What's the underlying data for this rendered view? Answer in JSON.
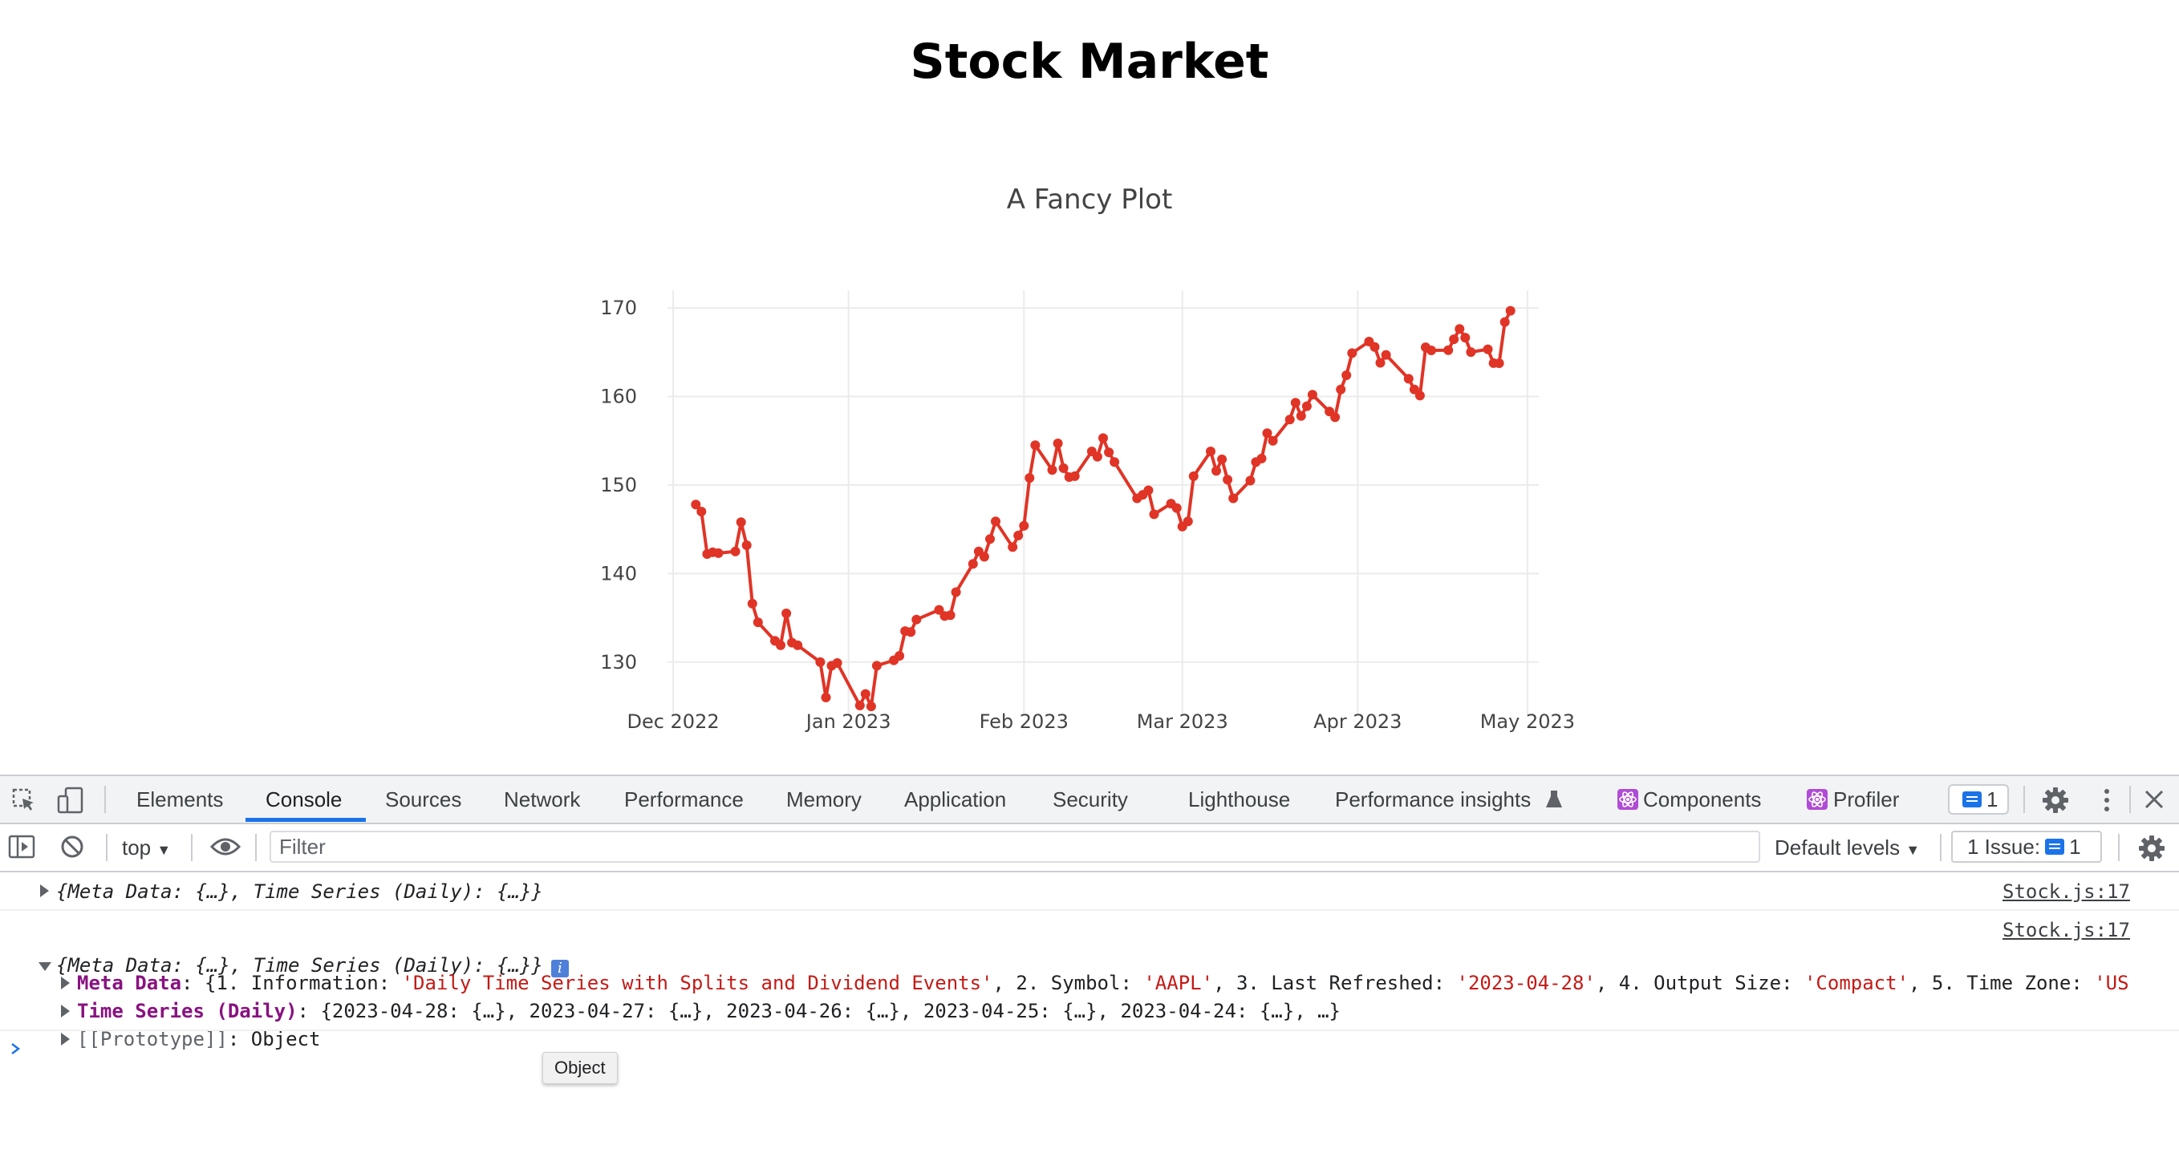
{
  "page": {
    "title": "Stock Market"
  },
  "chart_data": {
    "type": "line",
    "title": "A Fancy Plot",
    "xlabel": "",
    "ylabel": "",
    "x_ticks": [
      "Dec 2022",
      "Jan 2023",
      "Feb 2023",
      "Mar 2023",
      "Apr 2023",
      "May 2023"
    ],
    "y_ticks": [
      130,
      140,
      150,
      160,
      170
    ],
    "ylim": [
      124,
      172
    ],
    "xlim": [
      "2022-11-30",
      "2023-05-03"
    ],
    "grid": true,
    "line_color": "#e03426",
    "series": [
      {
        "x": [
          "2022-12-05",
          "2022-12-06",
          "2022-12-07",
          "2022-12-08",
          "2022-12-09",
          "2022-12-12",
          "2022-12-13",
          "2022-12-14",
          "2022-12-15",
          "2022-12-16",
          "2022-12-19",
          "2022-12-20",
          "2022-12-21",
          "2022-12-22",
          "2022-12-23",
          "2022-12-27",
          "2022-12-28",
          "2022-12-29",
          "2022-12-30",
          "2023-01-03",
          "2023-01-04",
          "2023-01-05",
          "2023-01-06",
          "2023-01-09",
          "2023-01-10",
          "2023-01-11",
          "2023-01-12",
          "2023-01-13",
          "2023-01-17",
          "2023-01-18",
          "2023-01-19",
          "2023-01-20",
          "2023-01-23",
          "2023-01-24",
          "2023-01-25",
          "2023-01-26",
          "2023-01-27",
          "2023-01-30",
          "2023-01-31",
          "2023-02-01",
          "2023-02-02",
          "2023-02-03",
          "2023-02-06",
          "2023-02-07",
          "2023-02-08",
          "2023-02-09",
          "2023-02-10",
          "2023-02-13",
          "2023-02-14",
          "2023-02-15",
          "2023-02-16",
          "2023-02-17",
          "2023-02-21",
          "2023-02-22",
          "2023-02-23",
          "2023-02-24",
          "2023-02-27",
          "2023-02-28",
          "2023-03-01",
          "2023-03-02",
          "2023-03-03",
          "2023-03-06",
          "2023-03-07",
          "2023-03-08",
          "2023-03-09",
          "2023-03-10",
          "2023-03-13",
          "2023-03-14",
          "2023-03-15",
          "2023-03-16",
          "2023-03-17",
          "2023-03-20",
          "2023-03-21",
          "2023-03-22",
          "2023-03-23",
          "2023-03-24",
          "2023-03-27",
          "2023-03-28",
          "2023-03-29",
          "2023-03-30",
          "2023-03-31",
          "2023-04-03",
          "2023-04-04",
          "2023-04-05",
          "2023-04-06",
          "2023-04-10",
          "2023-04-11",
          "2023-04-12",
          "2023-04-13",
          "2023-04-14",
          "2023-04-17",
          "2023-04-18",
          "2023-04-19",
          "2023-04-20",
          "2023-04-21",
          "2023-04-24",
          "2023-04-25",
          "2023-04-26",
          "2023-04-27",
          "2023-04-28"
        ],
        "y": [
          147.8,
          147.0,
          142.2,
          142.4,
          142.3,
          142.5,
          145.8,
          143.2,
          136.6,
          134.5,
          132.4,
          131.9,
          135.5,
          132.2,
          131.9,
          130.0,
          126.0,
          129.6,
          129.9,
          125.1,
          126.4,
          125.0,
          129.6,
          130.2,
          130.7,
          133.5,
          133.4,
          134.8,
          135.9,
          135.2,
          135.3,
          137.9,
          141.1,
          142.5,
          141.9,
          143.9,
          145.9,
          143.0,
          144.3,
          145.4,
          150.8,
          154.5,
          151.7,
          154.7,
          151.9,
          150.9,
          151.0,
          153.8,
          153.2,
          155.3,
          153.7,
          152.6,
          148.5,
          148.9,
          149.4,
          146.7,
          147.9,
          147.4,
          145.3,
          145.9,
          151.0,
          153.8,
          151.6,
          152.9,
          150.6,
          148.5,
          150.5,
          152.6,
          152.99,
          155.85,
          155.0,
          157.4,
          159.3,
          157.8,
          158.9,
          160.2,
          158.3,
          157.65,
          160.8,
          162.4,
          164.9,
          166.2,
          165.6,
          163.8,
          164.7,
          162.0,
          160.8,
          160.1,
          165.56,
          165.21,
          165.23,
          166.47,
          167.63,
          166.65,
          165.02,
          165.33,
          163.77,
          163.76,
          168.41,
          169.68
        ]
      }
    ]
  },
  "devtools": {
    "tabs": [
      "Elements",
      "Console",
      "Sources",
      "Network",
      "Performance",
      "Memory",
      "Application",
      "Security",
      "Lighthouse",
      "Performance insights",
      "Components",
      "Profiler"
    ],
    "messages_count": "1",
    "context": "top",
    "filter_placeholder": "Filter",
    "levels": "Default levels",
    "issues_label": "1 Issue:",
    "issues_count": "1",
    "colors": {
      "accent": "#1a73e8",
      "key": "#881280",
      "string": "#c41a16"
    }
  },
  "console": {
    "entries": [
      {
        "summary": "{Meta Data: {…}, Time Series (Daily): {…}}",
        "source": "Stock.js:17"
      },
      {
        "summary": "{Meta Data: {…}, Time Series (Daily): {…}}",
        "source": "Stock.js:17"
      }
    ],
    "meta": {
      "key": "Meta Data",
      "open": "{1. Information: ",
      "info": "'Daily Time Series with Splits and Dividend Events'",
      "symbol_label": ", 2. Symbol: ",
      "symbol": "'AAPL'",
      "refreshed_label": ", 3. Last Refreshed: ",
      "refreshed": "'2023-04-28'",
      "size_label": ", 4. Output Size: ",
      "size": "'Compact'",
      "tz_label": ", 5. Time Zone: ",
      "tz": "'US"
    },
    "series": {
      "key": "Time Series (Daily)",
      "value": "{2023-04-28: {…}, 2023-04-27: {…}, 2023-04-26: {…}, 2023-04-25: {…}, 2023-04-24: {…}, …}"
    },
    "proto": {
      "key": "[[Prototype]]",
      "value": "Object"
    },
    "tooltip": "Object"
  }
}
